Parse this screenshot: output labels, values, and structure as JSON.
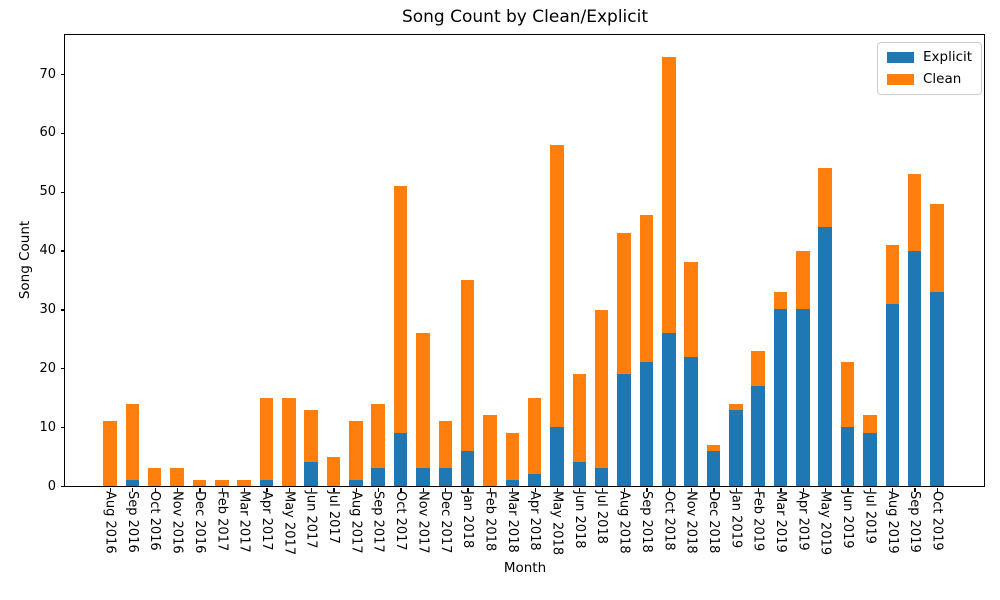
{
  "chart_data": {
    "type": "bar",
    "stacked": true,
    "title": "Song Count by Clean/Explicit",
    "xlabel": "Month",
    "ylabel": "Song Count",
    "ylim": [
      0,
      76.65
    ],
    "y_ticks": [
      0,
      10,
      20,
      30,
      40,
      50,
      60,
      70
    ],
    "grid": false,
    "legend_position": "upper right",
    "categories": [
      "Aug 2016",
      "Sep 2016",
      "Oct 2016",
      "Nov 2016",
      "Dec 2016",
      "Feb 2017",
      "Mar 2017",
      "Apr 2017",
      "May 2017",
      "Jun 2017",
      "Jul 2017",
      "Aug 2017",
      "Sep 2017",
      "Oct 2017",
      "Nov 2017",
      "Dec 2017",
      "Jan 2018",
      "Feb 2018",
      "Mar 2018",
      "Apr 2018",
      "May 2018",
      "Jun 2018",
      "Jul 2018",
      "Aug 2018",
      "Sep 2018",
      "Oct 2018",
      "Nov 2018",
      "Dec 2018",
      "Jan 2019",
      "Feb 2019",
      "Mar 2019",
      "Apr 2019",
      "May 2019",
      "Jun 2019",
      "Jul 2019",
      "Aug 2019",
      "Sep 2019",
      "Oct 2019"
    ],
    "series": [
      {
        "name": "Explicit",
        "color": "#1f77b4",
        "values": [
          0,
          1,
          0,
          0,
          0,
          0,
          0,
          1,
          0,
          4,
          0,
          1,
          3,
          9,
          3,
          3,
          6,
          0,
          1,
          2,
          10,
          4,
          3,
          19,
          21,
          26,
          22,
          6,
          13,
          17,
          30,
          30,
          44,
          10,
          9,
          31,
          40,
          33
        ]
      },
      {
        "name": "Clean",
        "color": "#ff7f0e",
        "values": [
          11,
          13,
          3,
          3,
          1,
          1,
          1,
          14,
          15,
          9,
          5,
          10,
          11,
          42,
          23,
          8,
          29,
          12,
          8,
          13,
          48,
          15,
          27,
          24,
          25,
          47,
          16,
          1,
          1,
          6,
          3,
          10,
          10,
          11,
          3,
          10,
          13,
          15
        ]
      }
    ],
    "totals": [
      11,
      14,
      3,
      3,
      1,
      1,
      1,
      15,
      15,
      13,
      5,
      11,
      14,
      51,
      26,
      11,
      35,
      12,
      9,
      15,
      58,
      19,
      30,
      43,
      46,
      73,
      38,
      7,
      14,
      23,
      33,
      40,
      54,
      21,
      12,
      41,
      53,
      48
    ]
  }
}
